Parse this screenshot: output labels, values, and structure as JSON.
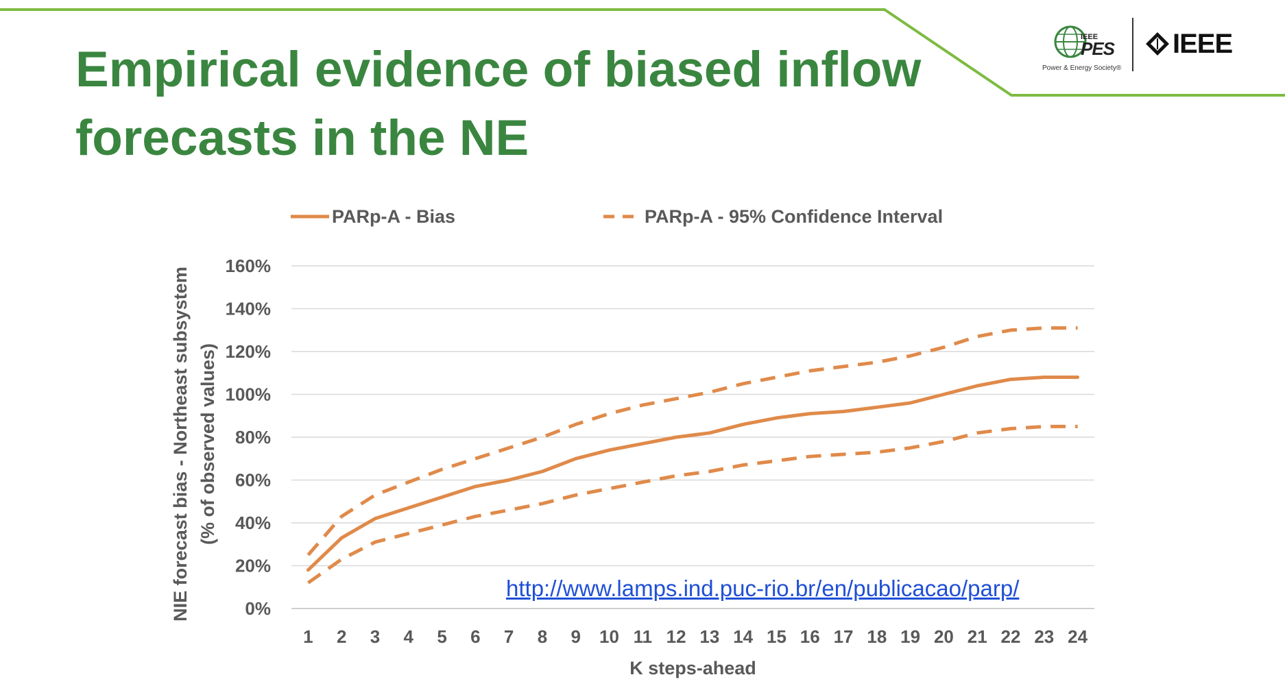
{
  "slide": {
    "title": "Empirical evidence of biased inflow forecasts in the NE",
    "link": "http://www.lamps.ind.puc-rio.br/en/publicacao/parp/"
  },
  "logos": {
    "pes_small": "IEEE",
    "pes_big": "PES",
    "pes_tagline": "Power & Energy Society®",
    "ieee": "IEEE"
  },
  "colors": {
    "title": "#3a8640",
    "accent_line": "#7dbb42",
    "series": "#e08a4a",
    "grid": "#d9d9d9",
    "axis_text": "#595959",
    "link": "#1f4fd6"
  },
  "chart_data": {
    "type": "line",
    "xlabel": "K steps-ahead",
    "ylabel": "NIE forecast bias - Northeast subsystem (% of observed values)",
    "ylabel_lines": [
      "NIE forecast bias - Northeast subsystem",
      "(% of observed values)"
    ],
    "ylim": [
      0,
      160
    ],
    "yticks": [
      0,
      20,
      40,
      60,
      80,
      100,
      120,
      140,
      160
    ],
    "ytick_labels": [
      "0%",
      "20%",
      "40%",
      "60%",
      "80%",
      "100%",
      "120%",
      "140%",
      "160%"
    ],
    "x": [
      1,
      2,
      3,
      4,
      5,
      6,
      7,
      8,
      9,
      10,
      11,
      12,
      13,
      14,
      15,
      16,
      17,
      18,
      19,
      20,
      21,
      22,
      23,
      24
    ],
    "grid": true,
    "legend_position": "top",
    "series": [
      {
        "name": "PARp-A - Bias",
        "style": "solid",
        "values": [
          18,
          33,
          42,
          47,
          52,
          57,
          60,
          64,
          70,
          74,
          77,
          80,
          82,
          86,
          89,
          91,
          92,
          94,
          96,
          100,
          104,
          107,
          108,
          108
        ]
      },
      {
        "name": "PARp-A - 95% Confidence Interval",
        "style": "dashed",
        "values": [
          25,
          43,
          53,
          59,
          65,
          70,
          75,
          80,
          86,
          91,
          95,
          98,
          101,
          105,
          108,
          111,
          113,
          115,
          118,
          122,
          127,
          130,
          131,
          131
        ]
      },
      {
        "name": "",
        "style": "dashed",
        "values": [
          12,
          23,
          31,
          35,
          39,
          43,
          46,
          49,
          53,
          56,
          59,
          62,
          64,
          67,
          69,
          71,
          72,
          73,
          75,
          78,
          82,
          84,
          85,
          85
        ]
      }
    ]
  }
}
